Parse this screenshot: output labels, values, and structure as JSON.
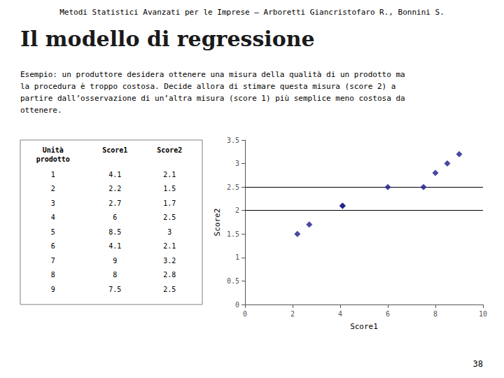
{
  "chart_data": {
    "type": "scatter",
    "subtitle": "Metodi Statistici Avanzati per le Imprese – Arboretti Giancristofaro R., Bonnini S.",
    "title": "Il modello di regressione",
    "annotations": [
      "Esempio: un produttore desidera ottenere una misura della qualità di un prodotto ma\nla procedura è troppo costosa. Decide allora di stimare questa misura (score 2) a\npartire dall’osservazione di un’altra misura (score 1) più semplice meno costosa da\nottenere.",
      "38"
    ],
    "table": {
      "headers": [
        "Unità\nprodotto",
        "Score1",
        "Score2"
      ],
      "rows": [
        [
          1,
          4.1,
          2.1
        ],
        [
          2,
          2.2,
          1.5
        ],
        [
          3,
          2.7,
          1.7
        ],
        [
          4,
          6,
          2.5
        ],
        [
          5,
          8.5,
          3
        ],
        [
          6,
          4.1,
          2.1
        ],
        [
          7,
          9,
          3.2
        ],
        [
          8,
          8,
          2.8
        ],
        [
          9,
          7.5,
          2.5
        ]
      ]
    },
    "x": [
      4.1,
      2.2,
      2.7,
      6,
      8.5,
      4.1,
      9,
      8,
      7.5
    ],
    "values": [
      2.1,
      1.5,
      1.7,
      2.5,
      3.0,
      2.1,
      3.2,
      2.8,
      2.5
    ],
    "color": "#1a1a8c",
    "marker": "diamond",
    "hlines": [
      2.0,
      2.5
    ],
    "xlabel": "Score1",
    "ylabel": "Score2",
    "xlim": [
      0,
      10
    ],
    "ylim": [
      0,
      3.5
    ],
    "xticks": [
      0,
      2,
      4,
      6,
      8,
      10
    ],
    "yticks": [
      0,
      0.5,
      1,
      1.5,
      2,
      2.5,
      3,
      3.5
    ],
    "grid": false
  }
}
